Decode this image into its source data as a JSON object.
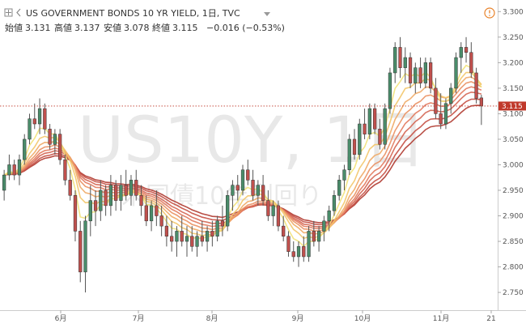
{
  "header": {
    "title": "US GOVERNMENT BONDS 10 YR YIELD, 1日, TVC",
    "open_label": "始値",
    "open_value": "3.131",
    "high_label": "高値",
    "high_value": "3.137",
    "low_label": "安値",
    "low_value": "3.078",
    "close_label": "終値",
    "close_value": "3.115",
    "change": "−0.016 (−0.53%)"
  },
  "watermark": {
    "symbol": "US10Y, 1日",
    "description": "米国債10年利回り"
  },
  "last_price_label": "3.115",
  "colors": {
    "up": "#4a8c6a",
    "down": "#c0504d",
    "last_price": "#c0392b",
    "ema_fast": "#f0d060",
    "ema_slow": "#b03020"
  },
  "chart_data": {
    "type": "candlestick",
    "title": "US GOVERNMENT BONDS 10 YR YIELD, 1日, TVC",
    "y_axis_ticks": [
      "3.300",
      "3.250",
      "3.200",
      "3.150",
      "3.100",
      "3.050",
      "3.000",
      "2.950",
      "2.900",
      "2.850",
      "2.800",
      "2.750"
    ],
    "x_axis_ticks": [
      "6月",
      "7月",
      "8月",
      "9月",
      "10月",
      "11月",
      "21"
    ],
    "ylim": [
      2.72,
      3.31
    ],
    "last_price": 3.115,
    "grid": false,
    "candles": [
      [
        2.95,
        2.99,
        2.93,
        2.98
      ],
      [
        2.98,
        3.02,
        2.97,
        3.0
      ],
      [
        3.0,
        3.01,
        2.97,
        2.98
      ],
      [
        2.98,
        3.02,
        2.96,
        3.01
      ],
      [
        3.01,
        3.06,
        3.0,
        3.05
      ],
      [
        3.05,
        3.1,
        3.04,
        3.09
      ],
      [
        3.09,
        3.12,
        3.07,
        3.08
      ],
      [
        3.08,
        3.13,
        3.06,
        3.11
      ],
      [
        3.11,
        3.12,
        3.06,
        3.07
      ],
      [
        3.07,
        3.08,
        3.03,
        3.04
      ],
      [
        3.04,
        3.07,
        3.02,
        3.06
      ],
      [
        3.06,
        3.07,
        3.0,
        3.01
      ],
      [
        3.01,
        3.02,
        2.96,
        2.97
      ],
      [
        2.97,
        2.99,
        2.93,
        2.94
      ],
      [
        2.94,
        2.95,
        2.85,
        2.87
      ],
      [
        2.87,
        2.89,
        2.77,
        2.79
      ],
      [
        2.79,
        2.9,
        2.75,
        2.89
      ],
      [
        2.89,
        2.96,
        2.86,
        2.93
      ],
      [
        2.93,
        2.95,
        2.88,
        2.91
      ],
      [
        2.91,
        2.97,
        2.89,
        2.95
      ],
      [
        2.95,
        2.96,
        2.9,
        2.92
      ],
      [
        2.92,
        2.98,
        2.9,
        2.96
      ],
      [
        2.96,
        2.97,
        2.91,
        2.93
      ],
      [
        2.93,
        2.98,
        2.91,
        2.96
      ],
      [
        2.96,
        2.99,
        2.93,
        2.94
      ],
      [
        2.94,
        2.98,
        2.92,
        2.97
      ],
      [
        2.97,
        2.99,
        2.93,
        2.94
      ],
      [
        2.94,
        2.96,
        2.9,
        2.92
      ],
      [
        2.92,
        2.94,
        2.88,
        2.89
      ],
      [
        2.89,
        2.93,
        2.87,
        2.92
      ],
      [
        2.92,
        2.95,
        2.88,
        2.9
      ],
      [
        2.9,
        2.92,
        2.86,
        2.88
      ],
      [
        2.88,
        2.9,
        2.84,
        2.86
      ],
      [
        2.86,
        2.89,
        2.83,
        2.85
      ],
      [
        2.85,
        2.88,
        2.82,
        2.87
      ],
      [
        2.87,
        2.9,
        2.84,
        2.85
      ],
      [
        2.85,
        2.88,
        2.82,
        2.86
      ],
      [
        2.86,
        2.88,
        2.83,
        2.84
      ],
      [
        2.84,
        2.87,
        2.82,
        2.86
      ],
      [
        2.86,
        2.89,
        2.84,
        2.85
      ],
      [
        2.85,
        2.88,
        2.83,
        2.87
      ],
      [
        2.87,
        2.89,
        2.84,
        2.86
      ],
      [
        2.86,
        2.9,
        2.85,
        2.89
      ],
      [
        2.89,
        2.92,
        2.86,
        2.88
      ],
      [
        2.88,
        2.95,
        2.87,
        2.94
      ],
      [
        2.94,
        2.97,
        2.91,
        2.96
      ],
      [
        2.96,
        2.98,
        2.93,
        2.95
      ],
      [
        2.95,
        3.0,
        2.94,
        2.99
      ],
      [
        2.99,
        3.01,
        2.96,
        2.97
      ],
      [
        2.97,
        2.99,
        2.93,
        2.94
      ],
      [
        2.94,
        2.97,
        2.92,
        2.96
      ],
      [
        2.96,
        2.98,
        2.92,
        2.93
      ],
      [
        2.93,
        2.95,
        2.89,
        2.9
      ],
      [
        2.9,
        2.93,
        2.88,
        2.92
      ],
      [
        2.92,
        2.93,
        2.87,
        2.88
      ],
      [
        2.88,
        2.9,
        2.85,
        2.86
      ],
      [
        2.86,
        2.87,
        2.82,
        2.83
      ],
      [
        2.83,
        2.85,
        2.81,
        2.82
      ],
      [
        2.82,
        2.85,
        2.8,
        2.84
      ],
      [
        2.84,
        2.86,
        2.81,
        2.82
      ],
      [
        2.82,
        2.88,
        2.81,
        2.87
      ],
      [
        2.87,
        2.89,
        2.84,
        2.85
      ],
      [
        2.85,
        2.88,
        2.83,
        2.87
      ],
      [
        2.87,
        2.9,
        2.85,
        2.89
      ],
      [
        2.89,
        2.92,
        2.87,
        2.91
      ],
      [
        2.91,
        2.95,
        2.9,
        2.94
      ],
      [
        2.94,
        2.98,
        2.93,
        2.97
      ],
      [
        2.97,
        3.0,
        2.95,
        2.99
      ],
      [
        2.99,
        3.06,
        2.98,
        3.05
      ],
      [
        3.05,
        3.07,
        3.01,
        3.02
      ],
      [
        3.02,
        3.09,
        3.01,
        3.08
      ],
      [
        3.08,
        3.11,
        3.05,
        3.06
      ],
      [
        3.06,
        3.12,
        3.05,
        3.11
      ],
      [
        3.11,
        3.12,
        3.06,
        3.07
      ],
      [
        3.07,
        3.09,
        3.03,
        3.04
      ],
      [
        3.04,
        3.12,
        3.03,
        3.11
      ],
      [
        3.11,
        3.19,
        3.1,
        3.18
      ],
      [
        3.18,
        3.24,
        3.16,
        3.23
      ],
      [
        3.23,
        3.25,
        3.17,
        3.19
      ],
      [
        3.19,
        3.23,
        3.16,
        3.21
      ],
      [
        3.21,
        3.22,
        3.15,
        3.16
      ],
      [
        3.16,
        3.2,
        3.14,
        3.19
      ],
      [
        3.19,
        3.21,
        3.15,
        3.16
      ],
      [
        3.16,
        3.21,
        3.15,
        3.2
      ],
      [
        3.2,
        3.21,
        3.14,
        3.15
      ],
      [
        3.15,
        3.17,
        3.09,
        3.1
      ],
      [
        3.1,
        3.14,
        3.07,
        3.08
      ],
      [
        3.08,
        3.13,
        3.07,
        3.12
      ],
      [
        3.12,
        3.16,
        3.1,
        3.15
      ],
      [
        3.15,
        3.22,
        3.14,
        3.21
      ],
      [
        3.21,
        3.24,
        3.18,
        3.23
      ],
      [
        3.23,
        3.25,
        3.2,
        3.22
      ],
      [
        3.22,
        3.24,
        3.17,
        3.18
      ],
      [
        3.18,
        3.19,
        3.12,
        3.13
      ],
      [
        3.131,
        3.137,
        3.078,
        3.115
      ]
    ]
  }
}
